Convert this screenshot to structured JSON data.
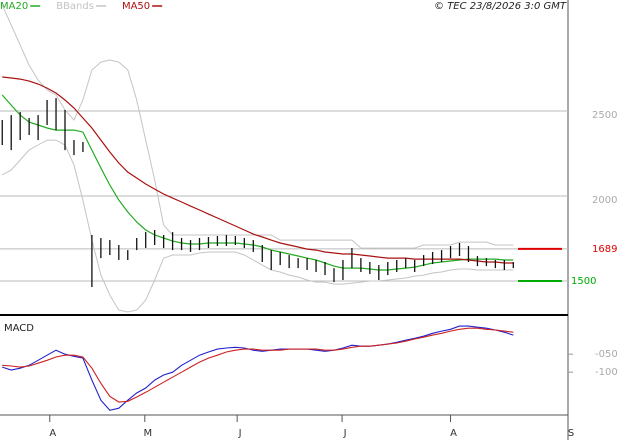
{
  "chart_data": [
    {
      "type": "hilo",
      "copyright": "© TEC 23/8/2026 3:0 GMT",
      "bar_color": "#111111",
      "highs": [
        2447,
        2476,
        2494,
        2459,
        2476,
        2565,
        2576,
        2506,
        2329,
        2318,
        1771,
        1753,
        1741,
        1712,
        1682,
        1753,
        1788,
        1800,
        1771,
        1788,
        1753,
        1741,
        1753,
        1759,
        1765,
        1771,
        1765,
        1753,
        1741,
        1712,
        1682,
        1671,
        1653,
        1635,
        1635,
        1624,
        1612,
        1576,
        1624,
        1694,
        1635,
        1612,
        1594,
        1612,
        1624,
        1635,
        1624,
        1653,
        1671,
        1682,
        1706,
        1724,
        1706,
        1647,
        1635,
        1624,
        1624,
        1612
      ],
      "lows": [
        2300,
        2270,
        2329,
        2359,
        2329,
        2418,
        2388,
        2270,
        2241,
        2259,
        1465,
        1635,
        1653,
        1624,
        1624,
        1682,
        1694,
        1712,
        1694,
        1682,
        1682,
        1671,
        1682,
        1694,
        1706,
        1706,
        1712,
        1694,
        1671,
        1612,
        1565,
        1594,
        1576,
        1576,
        1565,
        1553,
        1535,
        1494,
        1506,
        1576,
        1553,
        1541,
        1506,
        1535,
        1553,
        1576,
        1553,
        1588,
        1600,
        1612,
        1635,
        1647,
        1612,
        1588,
        1588,
        1576,
        1565,
        1576
      ],
      "series": [
        {
          "name": "MA20",
          "color": "#22aa22",
          "values": [
            2594,
            2535,
            2476,
            2435,
            2418,
            2400,
            2388,
            2388,
            2388,
            2376,
            2270,
            2165,
            2065,
            1976,
            1906,
            1847,
            1800,
            1771,
            1753,
            1735,
            1724,
            1718,
            1718,
            1724,
            1724,
            1724,
            1724,
            1718,
            1712,
            1700,
            1682,
            1671,
            1659,
            1647,
            1635,
            1624,
            1606,
            1588,
            1576,
            1576,
            1576,
            1571,
            1565,
            1565,
            1571,
            1576,
            1582,
            1594,
            1606,
            1612,
            1618,
            1624,
            1629,
            1629,
            1629,
            1629,
            1624,
            1624
          ]
        },
        {
          "name": "BBands",
          "color": "#c4c4c4",
          "upper": [
            3123,
            3006,
            2888,
            2770,
            2682,
            2624,
            2594,
            2506,
            2447,
            2565,
            2741,
            2788,
            2800,
            2788,
            2741,
            2565,
            2329,
            2094,
            1829,
            1771,
            1771,
            1771,
            1771,
            1771,
            1771,
            1771,
            1771,
            1771,
            1771,
            1771,
            1771,
            1741,
            1741,
            1741,
            1741,
            1741,
            1741,
            1741,
            1741,
            1741,
            1694,
            1694,
            1694,
            1694,
            1694,
            1694,
            1694,
            1712,
            1712,
            1712,
            1712,
            1729,
            1729,
            1729,
            1729,
            1712,
            1712,
            1712
          ],
          "lower": [
            2124,
            2153,
            2212,
            2271,
            2300,
            2329,
            2329,
            2300,
            2182,
            1976,
            1741,
            1535,
            1418,
            1329,
            1318,
            1329,
            1388,
            1506,
            1635,
            1653,
            1653,
            1653,
            1665,
            1671,
            1671,
            1671,
            1671,
            1653,
            1624,
            1594,
            1565,
            1553,
            1535,
            1524,
            1506,
            1494,
            1494,
            1482,
            1482,
            1488,
            1494,
            1500,
            1500,
            1506,
            1512,
            1518,
            1529,
            1535,
            1547,
            1553,
            1565,
            1571,
            1571,
            1565,
            1565,
            1565,
            1565,
            1565
          ]
        },
        {
          "name": "MA50",
          "color": "#aa1111",
          "values": [
            2700,
            2694,
            2688,
            2676,
            2659,
            2635,
            2606,
            2565,
            2518,
            2459,
            2400,
            2329,
            2259,
            2194,
            2141,
            2106,
            2071,
            2041,
            2012,
            1988,
            1965,
            1941,
            1918,
            1894,
            1871,
            1847,
            1824,
            1800,
            1776,
            1759,
            1741,
            1724,
            1712,
            1700,
            1688,
            1682,
            1671,
            1665,
            1659,
            1659,
            1653,
            1647,
            1641,
            1635,
            1635,
            1635,
            1629,
            1629,
            1629,
            1629,
            1629,
            1629,
            1624,
            1618,
            1612,
            1612,
            1606,
            1606
          ]
        }
      ],
      "levels": [
        {
          "value": 1689,
          "color": "#dd0000"
        },
        {
          "value": 1500,
          "color": "#00aa00"
        }
      ],
      "xlim": [
        -0.25,
        63.1
      ],
      "ylim": [
        1312,
        3153
      ],
      "yticks": [
        2000,
        2500
      ]
    },
    {
      "type": "line",
      "title": "MACD",
      "series": [
        {
          "color": "#2222cc",
          "values": [
            -86,
            -94,
            -89,
            -81,
            -67,
            -53,
            -39,
            -50,
            -56,
            -61,
            -122,
            -178,
            -206,
            -200,
            -178,
            -158,
            -144,
            -122,
            -108,
            -100,
            -81,
            -67,
            -53,
            -44,
            -36,
            -33,
            -31,
            -33,
            -39,
            -42,
            -39,
            -36,
            -36,
            -36,
            -36,
            -39,
            -42,
            -39,
            -33,
            -25,
            -28,
            -28,
            -25,
            -22,
            -17,
            -11,
            -6,
            0,
            8,
            14,
            19,
            28,
            28,
            25,
            22,
            17,
            11,
            3
          ]
        },
        {
          "color": "#cc2222",
          "values": [
            -81,
            -83,
            -86,
            -83,
            -75,
            -67,
            -58,
            -53,
            -53,
            -58,
            -89,
            -131,
            -167,
            -183,
            -181,
            -169,
            -156,
            -142,
            -128,
            -114,
            -100,
            -86,
            -72,
            -61,
            -53,
            -44,
            -39,
            -36,
            -36,
            -39,
            -39,
            -39,
            -36,
            -36,
            -36,
            -36,
            -39,
            -39,
            -36,
            -31,
            -28,
            -28,
            -25,
            -22,
            -19,
            -14,
            -8,
            -3,
            3,
            8,
            14,
            19,
            22,
            22,
            19,
            17,
            14,
            11
          ]
        }
      ],
      "xlim": [
        -0.25,
        63.1
      ],
      "ylim": [
        -219,
        56
      ],
      "yticks": [
        {
          "value": -50,
          "label": "-050"
        },
        -100
      ],
      "xticks": [
        {
          "value": 5.3,
          "label": "A"
        },
        {
          "value": 15.9,
          "label": "M"
        },
        {
          "value": 26.2,
          "label": "J"
        },
        {
          "value": 37.9,
          "label": "J"
        },
        {
          "value": 50,
          "label": "A"
        },
        {
          "value": 63.1,
          "label": "S"
        }
      ]
    }
  ]
}
